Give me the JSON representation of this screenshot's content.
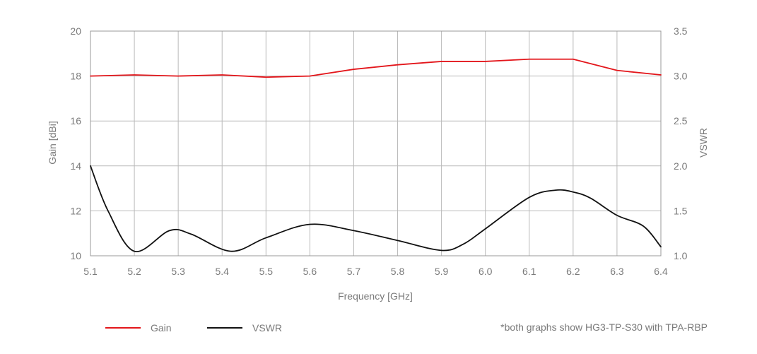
{
  "chart_data": {
    "type": "line",
    "xlabel": "Frequency [GHz]",
    "ylabel_left": "Gain [dBi]",
    "ylabel_right": "VSWR",
    "xlim": [
      5.1,
      6.4
    ],
    "ylim_left": [
      10,
      20
    ],
    "ylim_right": [
      1.0,
      3.5
    ],
    "x_ticks": [
      "5.1",
      "5.2",
      "5.3",
      "5.4",
      "5.5",
      "5.6",
      "5.7",
      "5.8",
      "5.9",
      "6.0",
      "6.1",
      "6.2",
      "6.3",
      "6.4"
    ],
    "y_left_ticks": [
      {
        "value": 10,
        "label": "10"
      },
      {
        "value": 12,
        "label": "12"
      },
      {
        "value": 14,
        "label": "14"
      },
      {
        "value": 16,
        "label": "16"
      },
      {
        "value": 18,
        "label": "18"
      },
      {
        "value": 20,
        "label": "20"
      }
    ],
    "y_right_ticks": [
      {
        "value": 1.0,
        "label": "1.0"
      },
      {
        "value": 1.5,
        "label": "1.5"
      },
      {
        "value": 2.0,
        "label": "2.0"
      },
      {
        "value": 2.5,
        "label": "2.5"
      },
      {
        "value": 3.0,
        "label": "3.0"
      },
      {
        "value": 3.5,
        "label": "3.5"
      }
    ],
    "grid": true,
    "legend_position": "bottom-left",
    "series": [
      {
        "name": "Gain",
        "axis": "left",
        "color": "#e3161b",
        "x": [
          5.1,
          5.2,
          5.3,
          5.4,
          5.5,
          5.6,
          5.7,
          5.8,
          5.9,
          6.0,
          6.1,
          6.2,
          6.3,
          6.4
        ],
        "y": [
          18.0,
          18.05,
          18.0,
          18.05,
          17.95,
          18.0,
          18.3,
          18.5,
          18.65,
          18.65,
          18.75,
          18.75,
          18.25,
          18.05
        ]
      },
      {
        "name": "VSWR",
        "axis": "right",
        "color": "#111111",
        "x": [
          5.1,
          5.14,
          5.2,
          5.28,
          5.33,
          5.42,
          5.5,
          5.6,
          5.7,
          5.8,
          5.9,
          5.95,
          6.0,
          6.1,
          6.16,
          6.2,
          6.24,
          6.3,
          6.36,
          6.4
        ],
        "y": [
          2.0,
          1.5,
          1.05,
          1.28,
          1.24,
          1.05,
          1.2,
          1.35,
          1.28,
          1.17,
          1.06,
          1.13,
          1.3,
          1.65,
          1.73,
          1.71,
          1.64,
          1.45,
          1.33,
          1.1
        ]
      }
    ],
    "note": "*both graphs show HG3-TP-S30 with TPA-RBP"
  }
}
